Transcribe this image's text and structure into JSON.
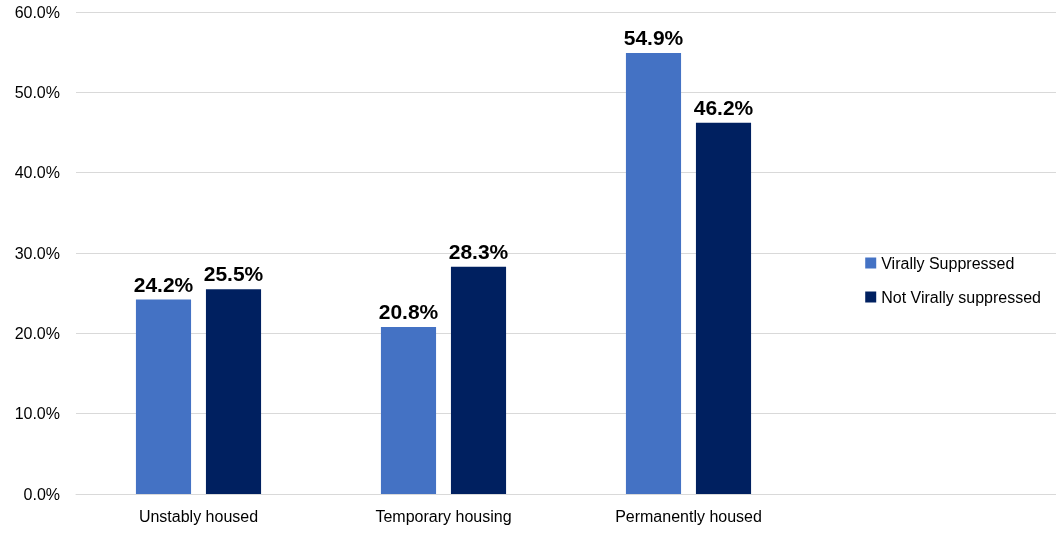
{
  "chart_data": {
    "type": "bar",
    "categories": [
      "Unstably housed",
      "Temporary housing",
      "Permanently housed",
      null
    ],
    "series": [
      {
        "name": "Virally Suppressed",
        "color": "#4472c4",
        "values": [
          24.2,
          20.8,
          54.9,
          null
        ],
        "value_labels": [
          "24.2%",
          "20.8%",
          "54.9%",
          null
        ]
      },
      {
        "name": "Not Virally suppressed",
        "color": "#002060",
        "values": [
          25.5,
          28.3,
          46.2,
          null
        ],
        "value_labels": [
          "25.5%",
          "28.3%",
          "46.2%",
          null
        ]
      }
    ],
    "ylim": [
      0,
      60
    ],
    "yticks": [
      {
        "value": 0,
        "label": "0.0%"
      },
      {
        "value": 10,
        "label": "10.0%"
      },
      {
        "value": 20,
        "label": "20.0%"
      },
      {
        "value": 30,
        "label": "30.0%"
      },
      {
        "value": 40,
        "label": "40.0%"
      },
      {
        "value": 50,
        "label": "50.0%"
      },
      {
        "value": 60,
        "label": "60.0%"
      }
    ],
    "grid": "y",
    "legend": "right"
  }
}
